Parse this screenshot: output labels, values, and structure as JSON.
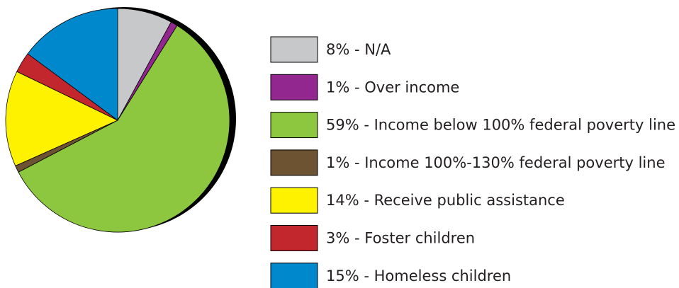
{
  "chart_data": {
    "type": "pie",
    "slices": [
      {
        "value": 8,
        "label": "8% - N/A",
        "color": "#c7c8ca"
      },
      {
        "value": 1,
        "label": "1% - Over income",
        "color": "#92278f"
      },
      {
        "value": 59,
        "label": "59% - Income below 100% federal poverty line",
        "color": "#8dc63f"
      },
      {
        "value": 1,
        "label": "1% - Income 100%-130% federal poverty line",
        "color": "#6d5331"
      },
      {
        "value": 14,
        "label": "14% - Receive public assistance",
        "color": "#fff200"
      },
      {
        "value": 3,
        "label": "3% - Foster children",
        "color": "#c1272d"
      },
      {
        "value": 15,
        "label": "15% - Homeless children",
        "color": "#0088cc"
      }
    ],
    "start_angle_deg": 0,
    "direction": "clockwise",
    "legend_position": "right",
    "edge_color": "#000000"
  }
}
